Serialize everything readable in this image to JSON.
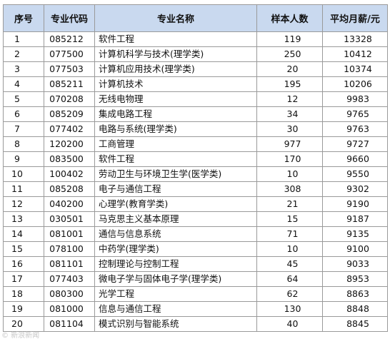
{
  "table": {
    "headers": [
      "序号",
      "专业代码",
      "专业名称",
      "样本人数",
      "平均月薪/元"
    ],
    "rows": [
      [
        "1",
        "085212",
        "软件工程",
        "119",
        "13328"
      ],
      [
        "2",
        "077500",
        "计算机科学与技术(理学类)",
        "250",
        "10412"
      ],
      [
        "3",
        "077503",
        "计算机应用技术(理学类)",
        "20",
        "10374"
      ],
      [
        "4",
        "085211",
        "计算机技术",
        "195",
        "10206"
      ],
      [
        "5",
        "070208",
        "无线电物理",
        "12",
        "9983"
      ],
      [
        "6",
        "085209",
        "集成电路工程",
        "34",
        "9765"
      ],
      [
        "7",
        "077402",
        "电路与系统(理学类)",
        "30",
        "9763"
      ],
      [
        "8",
        "120200",
        "工商管理",
        "977",
        "9727"
      ],
      [
        "9",
        "083500",
        "软件工程",
        "170",
        "9660"
      ],
      [
        "10",
        "100402",
        "劳动卫生与环境卫生学(医学类)",
        "10",
        "9550"
      ],
      [
        "11",
        "085208",
        "电子与通信工程",
        "308",
        "9302"
      ],
      [
        "12",
        "040200",
        "心理学(教育学类)",
        "21",
        "9190"
      ],
      [
        "13",
        "030501",
        "马克思主义基本原理",
        "15",
        "9187"
      ],
      [
        "14",
        "081001",
        "通信与信息系统",
        "71",
        "9135"
      ],
      [
        "15",
        "078100",
        "中药学(理学类)",
        "10",
        "9100"
      ],
      [
        "16",
        "081101",
        "控制理论与控制工程",
        "45",
        "9033"
      ],
      [
        "17",
        "077403",
        "微电子学与固体电子学(理学类)",
        "64",
        "8953"
      ],
      [
        "18",
        "080300",
        "光学工程",
        "62",
        "8863"
      ],
      [
        "19",
        "081000",
        "信息与通信工程",
        "130",
        "8848"
      ],
      [
        "20",
        "081104",
        "模式识别与智能系统",
        "40",
        "8845"
      ]
    ]
  },
  "watermark": "© 新浪新闻"
}
